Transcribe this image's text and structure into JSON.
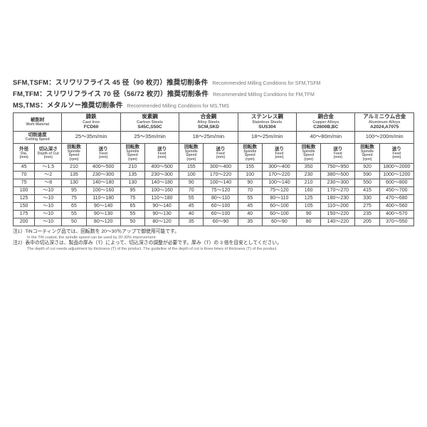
{
  "headings": [
    {
      "jp": "SFM,TSFM：スリワリフライス 45 径（90 枚刃）推奨切削条件",
      "en": "Recommended Milling Conditions for SFM,TSFM"
    },
    {
      "jp": "FM,TFM：スリワリフライス 70 径（56/72 枚刃）推奨切削条件",
      "en": "Recommended Milling Conditions for FM,TFM"
    },
    {
      "jp": "MS,TMS：メタルソー推奨切削条件",
      "en": "Recommended Milling Conditions for MS,TMS"
    }
  ],
  "left_labels": {
    "work_material": {
      "jp": "被削材",
      "en": "Work Material"
    },
    "cutting_speed": {
      "jp": "切削速度",
      "en": "Cutting Speed"
    },
    "dia": {
      "jp": "外径",
      "en": "Dia.",
      "unit": "(mm)"
    },
    "doc": {
      "jp": "切込深さ",
      "en": "Depth of Cut",
      "unit": "(mm)"
    }
  },
  "sub_headers": {
    "rpm": {
      "jp": "回転数",
      "en": "Spindle Speed",
      "unit": "(rpm)"
    },
    "feed": {
      "jp": "送り",
      "en": "Feed",
      "unit": "(mm)"
    }
  },
  "materials": [
    {
      "jp": "鋳鉄",
      "en": "Cast Iron",
      "code": "FCD60",
      "speed": "25～35m/min"
    },
    {
      "jp": "炭素鋼",
      "en": "Carbon Steels",
      "code": "S45C,S50C",
      "speed": "25～35m/min"
    },
    {
      "jp": "合金鋼",
      "en": "Alloy Steels",
      "code": "SCM,SKD",
      "speed": "18～25m/min"
    },
    {
      "jp": "ステンレス鋼",
      "en": "Stainless Steels",
      "code": "SUS304",
      "speed": "18～25m/min"
    },
    {
      "jp": "銅合金",
      "en": "Copper Alloys",
      "code": "C2600B,BC",
      "speed": "40～80m/min"
    },
    {
      "jp": "アルミニウム合金",
      "en": "Aluminum Alloys",
      "code": "A2024,A7075",
      "speed": "100～200m/min"
    }
  ],
  "rows": [
    {
      "dia": "45",
      "doc": "～1.5",
      "v": [
        [
          "210",
          "400～500"
        ],
        [
          "210",
          "400～500"
        ],
        [
          "155",
          "300～400"
        ],
        [
          "155",
          "300～400"
        ],
        [
          "350",
          "750～950"
        ],
        [
          "920",
          "1800～2000"
        ]
      ]
    },
    {
      "dia": "70",
      "doc": "～2",
      "v": [
        [
          "135",
          "230～300"
        ],
        [
          "135",
          "230～300"
        ],
        [
          "100",
          "170～220"
        ],
        [
          "100",
          "170～220"
        ],
        [
          "230",
          "380～500"
        ],
        [
          "590",
          "1000～1200"
        ]
      ]
    },
    {
      "dia": "75",
      "doc": "～8",
      "v": [
        [
          "130",
          "140～180"
        ],
        [
          "130",
          "140～180"
        ],
        [
          "90",
          "100～140"
        ],
        [
          "90",
          "100～140"
        ],
        [
          "210",
          "230～300"
        ],
        [
          "550",
          "600～800"
        ]
      ]
    },
    {
      "dia": "100",
      "doc": "～10",
      "v": [
        [
          "95",
          "100～160"
        ],
        [
          "95",
          "100～160"
        ],
        [
          "70",
          "75～120"
        ],
        [
          "70",
          "75～120"
        ],
        [
          "160",
          "170～270"
        ],
        [
          "415",
          "450～700"
        ]
      ]
    },
    {
      "dia": "125",
      "doc": "～10",
      "v": [
        [
          "75",
          "110～180"
        ],
        [
          "75",
          "110～180"
        ],
        [
          "55",
          "80～110"
        ],
        [
          "55",
          "80～110"
        ],
        [
          "125",
          "180～230"
        ],
        [
          "330",
          "470～680"
        ]
      ]
    },
    {
      "dia": "150",
      "doc": "～10",
      "v": [
        [
          "65",
          "90～140"
        ],
        [
          "65",
          "90～140"
        ],
        [
          "45",
          "60～100"
        ],
        [
          "45",
          "60～100"
        ],
        [
          "105",
          "110～200"
        ],
        [
          "275",
          "400～560"
        ]
      ]
    },
    {
      "dia": "175",
      "doc": "～10",
      "v": [
        [
          "55",
          "90～130"
        ],
        [
          "55",
          "90～130"
        ],
        [
          "40",
          "60～100"
        ],
        [
          "40",
          "60～100"
        ],
        [
          "90",
          "150～220"
        ],
        [
          "235",
          "400～570"
        ]
      ]
    },
    {
      "dia": "200",
      "doc": "～10",
      "v": [
        [
          "50",
          "80～120"
        ],
        [
          "50",
          "80～120"
        ],
        [
          "35",
          "60～90"
        ],
        [
          "35",
          "60～90"
        ],
        [
          "80",
          "140～220"
        ],
        [
          "205",
          "370～550"
        ]
      ]
    }
  ],
  "notes": [
    {
      "jp": "注1）TiNコーティング品では、回転数を 20～30％アップで御使用可能です。",
      "en": "In the TiN coated, the spindle speed can be used by 20-30% improvement."
    },
    {
      "jp": "注2）表中の切込深さは、製品の厚み（T）によって、切込深さの調整が必要です。厚み（T）の 3 倍を目安としてください。",
      "en": "The depth of cut needs adjustment by thickness (T) of the product. The guideline of the depth of cut is three times of thickness (T) of the product."
    }
  ],
  "col_widths": {
    "dia": "30px",
    "doc": "38px",
    "rpm": "34px",
    "feed": "48px"
  }
}
